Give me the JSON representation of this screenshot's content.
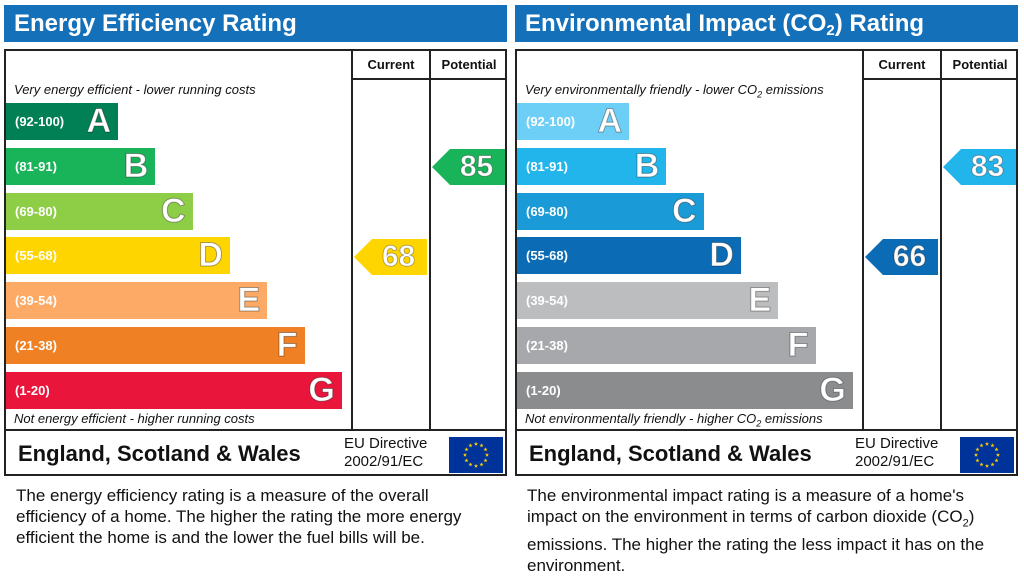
{
  "chart_data": [
    {
      "type": "bar",
      "title": "Energy Efficiency Rating",
      "column_headers": [
        "Current",
        "Potential"
      ],
      "top_caption": "Very energy efficient - lower running costs",
      "bottom_caption": "Not energy efficient - higher running costs",
      "categories": [
        "A",
        "B",
        "C",
        "D",
        "E",
        "F",
        "G"
      ],
      "ranges": [
        "(92-100)",
        "(81-91)",
        "(69-80)",
        "(55-68)",
        "(39-54)",
        "(21-38)",
        "(1-20)"
      ],
      "colors": [
        "#008054",
        "#19b459",
        "#8dce46",
        "#ffd500",
        "#fcaa65",
        "#ef8023",
        "#e9153b"
      ],
      "current": 68,
      "potential": 85,
      "current_band": "D",
      "potential_band": "B",
      "region": "England, Scotland & Wales",
      "directive_line1": "EU Directive",
      "directive_line2": "2002/91/EC",
      "description": "The energy efficiency rating is a measure of the overall efficiency of a home. The higher the rating the more energy efficient the home is and the lower the fuel bills will be."
    },
    {
      "type": "bar",
      "title_parts": [
        "Environmental Impact (CO",
        "2",
        ") Rating"
      ],
      "column_headers": [
        "Current",
        "Potential"
      ],
      "top_caption_parts": [
        "Very environmentally friendly - lower CO",
        "2",
        " emissions"
      ],
      "bottom_caption_parts": [
        "Not environmentally friendly - higher CO",
        "2",
        " emissions"
      ],
      "categories": [
        "A",
        "B",
        "C",
        "D",
        "E",
        "F",
        "G"
      ],
      "ranges": [
        "(92-100)",
        "(81-91)",
        "(69-80)",
        "(55-68)",
        "(39-54)",
        "(21-38)",
        "(1-20)"
      ],
      "colors": [
        "#6ecff6",
        "#22b5eb",
        "#1a9ad6",
        "#0c6bb5",
        "#bbbdbf",
        "#a6a8ab",
        "#8a8c8e"
      ],
      "current": 66,
      "potential": 83,
      "current_band": "D",
      "potential_band": "B",
      "region": "England, Scotland & Wales",
      "directive_line1": "EU Directive",
      "directive_line2": "2002/91/EC",
      "description_parts": [
        "The environmental impact rating is a measure of a home's impact on the environment in terms of carbon dioxide (CO",
        "2",
        ") emissions. The higher the rating the less impact it has on the environment."
      ]
    }
  ]
}
